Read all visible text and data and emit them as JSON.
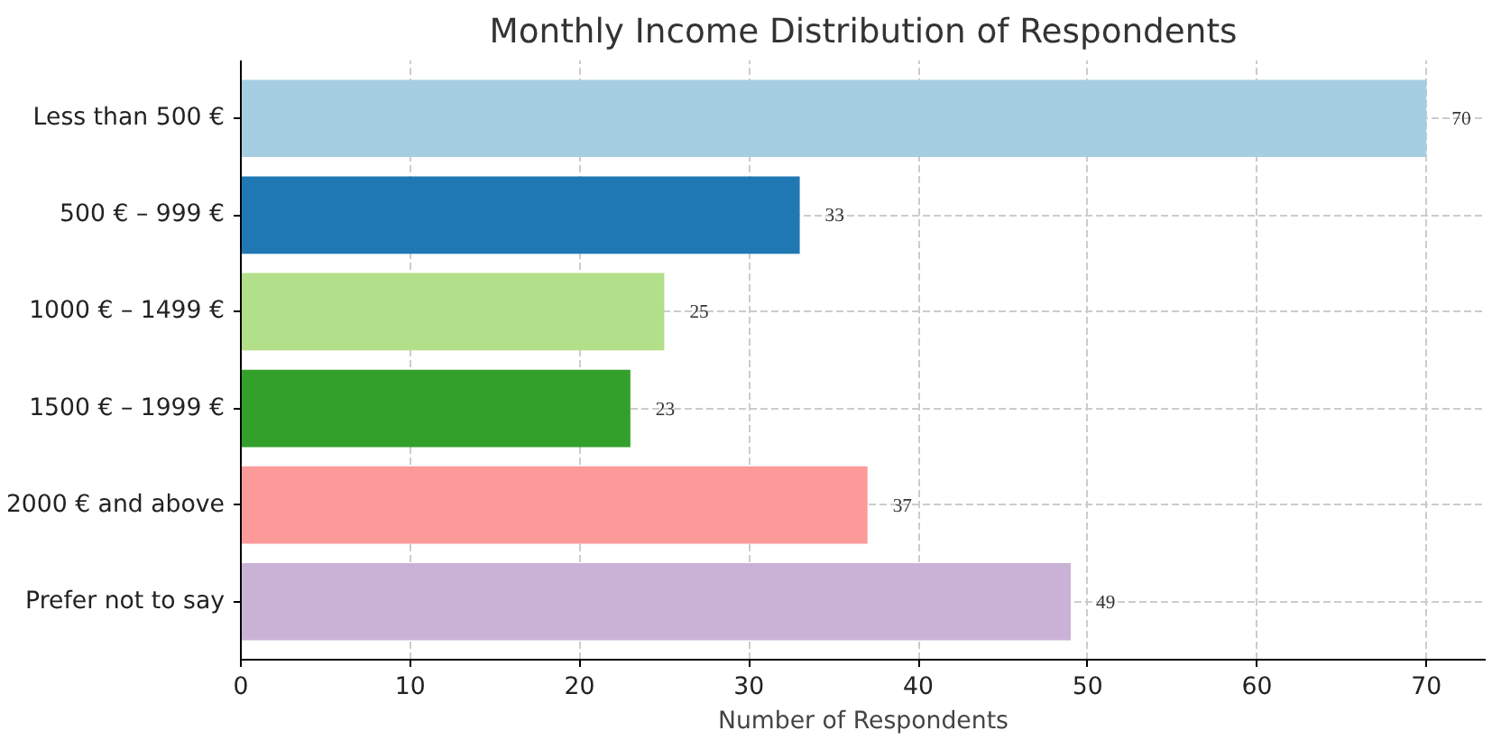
{
  "chart_data": {
    "type": "bar",
    "orientation": "horizontal",
    "title": "Monthly Income Distribution of Respondents",
    "xlabel": "Number of Respondents",
    "categories": [
      "Less than 500 €",
      "500 € – 999 €",
      "1000 € – 1499 €",
      "1500 € – 1999 €",
      "2000 € and above",
      "Prefer not to say"
    ],
    "values": [
      70,
      33,
      25,
      23,
      37,
      49
    ],
    "colors": [
      "#a6cee3",
      "#1f78b4",
      "#b2df8a",
      "#33a02c",
      "#fb9a99",
      "#cab2d6"
    ],
    "xlim": [
      0,
      73.5
    ],
    "xticks": [
      0,
      10,
      20,
      30,
      40,
      50,
      60,
      70
    ],
    "grid": true,
    "data_labels": true
  }
}
